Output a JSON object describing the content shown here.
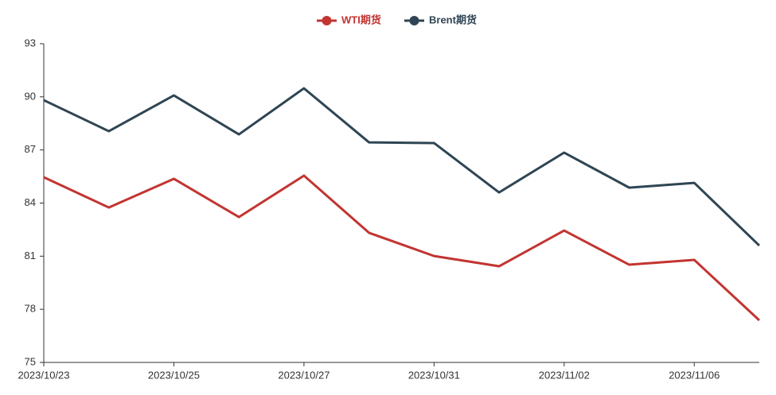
{
  "chart_data": {
    "type": "line",
    "categories": [
      "2023/10/23",
      null,
      "2023/10/25",
      null,
      "2023/10/27",
      null,
      "2023/10/31",
      null,
      "2023/11/02",
      null,
      "2023/11/06",
      null
    ],
    "series": [
      {
        "name": "WTI期货",
        "color": "#c23531",
        "values": [
          85.46,
          83.75,
          85.37,
          83.21,
          85.55,
          82.32,
          81.01,
          80.43,
          82.45,
          80.52,
          80.79,
          77.38
        ]
      },
      {
        "name": "Brent期货",
        "color": "#2f4554",
        "values": [
          89.81,
          88.06,
          90.08,
          87.88,
          90.48,
          87.43,
          87.39,
          84.6,
          86.85,
          84.87,
          85.14,
          81.6
        ]
      }
    ],
    "ylim": [
      75,
      93
    ],
    "yticks": [
      75,
      78,
      81,
      84,
      87,
      90,
      93
    ],
    "grid": false,
    "legend": "top"
  }
}
